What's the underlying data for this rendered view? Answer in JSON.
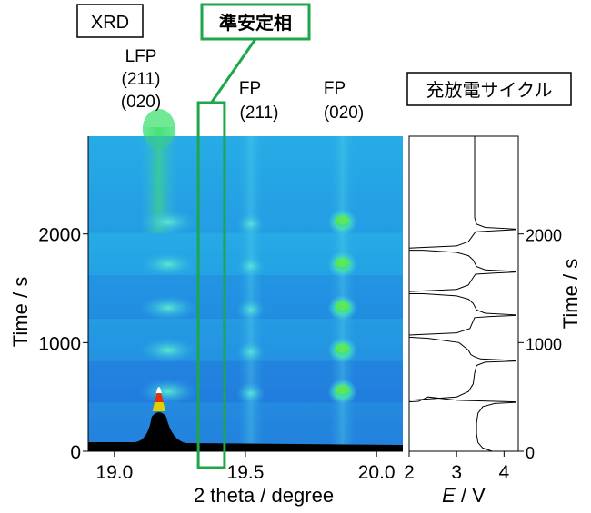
{
  "chart_data": [
    {
      "type": "heatmap",
      "panel_label": "XRD",
      "xlabel": "2 theta / degree",
      "ylabel": "Time / s",
      "xlim": [
        18.9,
        20.1
      ],
      "ylim": [
        0,
        2900
      ],
      "xticks": [
        19.0,
        19.5,
        20.0
      ],
      "xtick_labels": [
        "19.0",
        "19.5",
        "20.0"
      ],
      "yticks": [
        0,
        1000,
        2000
      ],
      "ytick_labels": [
        "0",
        "1000",
        "2000"
      ],
      "grid": false,
      "peaks": [
        {
          "label": "LFP",
          "label2": "(211)",
          "label3": "(020)",
          "two_theta": 19.17
        },
        {
          "label": "FP",
          "label2": "(211)",
          "two_theta": 19.52
        },
        {
          "label": "FP",
          "label2": "(020)",
          "two_theta": 19.87
        }
      ],
      "highlight_box": {
        "label": "準安定相",
        "x_range": [
          19.32,
          19.42
        ]
      },
      "charge_segments": [
        {
          "t_start": 0,
          "t_end": 450
        },
        {
          "t_start": 450,
          "t_end": 830
        },
        {
          "t_start": 830,
          "t_end": 1220
        },
        {
          "t_start": 1220,
          "t_end": 1620
        },
        {
          "t_start": 1620,
          "t_end": 2010
        },
        {
          "t_start": 2010,
          "t_end": 2900
        }
      ]
    },
    {
      "type": "line",
      "panel_label": "充放電サイクル",
      "xlabel_italic": "E",
      "xlabel_rest": " / V",
      "ylabel": "Time / s",
      "xlim": [
        2,
        4.3
      ],
      "ylim": [
        0,
        2900
      ],
      "xticks": [
        2,
        3,
        4
      ],
      "xtick_labels": [
        "2",
        "3",
        "4"
      ],
      "yticks": [
        0,
        1000,
        2000
      ],
      "ytick_labels": [
        "0",
        "1000",
        "2000"
      ],
      "series": [
        {
          "x": [
            3.7,
            3.48,
            3.42,
            3.4,
            3.4,
            3.43,
            3.5,
            3.65,
            4.25,
            4.25,
            2.2,
            2.0,
            2.0
          ],
          "y": [
            0,
            40,
            100,
            200,
            300,
            360,
            400,
            430,
            450,
            450,
            450,
            450,
            450
          ]
        }
      ],
      "curve_points": [
        [
          3.75,
          0
        ],
        [
          3.55,
          30
        ],
        [
          3.45,
          80
        ],
        [
          3.42,
          160
        ],
        [
          3.42,
          260
        ],
        [
          3.45,
          350
        ],
        [
          3.55,
          410
        ],
        [
          3.8,
          440
        ],
        [
          4.25,
          450
        ],
        [
          4.25,
          455
        ],
        [
          3.0,
          470
        ],
        [
          2.6,
          490
        ],
        [
          2.4,
          500
        ],
        [
          2.2,
          460
        ],
        [
          2.0,
          455
        ],
        [
          2.0,
          470
        ],
        [
          3.0,
          500
        ],
        [
          3.25,
          550
        ],
        [
          3.35,
          620
        ],
        [
          3.38,
          720
        ],
        [
          3.42,
          790
        ],
        [
          3.6,
          820
        ],
        [
          4.25,
          830
        ],
        [
          4.25,
          835
        ],
        [
          3.5,
          850
        ],
        [
          3.38,
          870
        ],
        [
          3.3,
          890
        ],
        [
          3.25,
          930
        ],
        [
          3.05,
          1000
        ],
        [
          2.4,
          1040
        ],
        [
          2.0,
          1050
        ],
        [
          2.0,
          1070
        ],
        [
          3.0,
          1090
        ],
        [
          3.28,
          1130
        ],
        [
          3.35,
          1200
        ],
        [
          3.38,
          1230
        ],
        [
          3.7,
          1240
        ],
        [
          4.25,
          1250
        ],
        [
          4.25,
          1255
        ],
        [
          3.6,
          1270
        ],
        [
          3.42,
          1300
        ],
        [
          3.35,
          1360
        ],
        [
          3.25,
          1400
        ],
        [
          3.0,
          1430
        ],
        [
          2.3,
          1450
        ],
        [
          2.0,
          1450
        ],
        [
          2.0,
          1470
        ],
        [
          3.0,
          1490
        ],
        [
          3.25,
          1530
        ],
        [
          3.35,
          1600
        ],
        [
          3.4,
          1630
        ],
        [
          3.8,
          1640
        ],
        [
          4.25,
          1650
        ],
        [
          4.25,
          1655
        ],
        [
          3.6,
          1670
        ],
        [
          3.42,
          1700
        ],
        [
          3.35,
          1760
        ],
        [
          3.25,
          1800
        ],
        [
          3.0,
          1830
        ],
        [
          2.3,
          1850
        ],
        [
          2.0,
          1850
        ],
        [
          2.0,
          1870
        ],
        [
          3.0,
          1890
        ],
        [
          3.25,
          1930
        ],
        [
          3.35,
          1990
        ],
        [
          3.4,
          2020
        ],
        [
          3.8,
          2030
        ],
        [
          4.25,
          2040
        ],
        [
          4.25,
          2045
        ],
        [
          3.6,
          2060
        ],
        [
          3.42,
          2090
        ],
        [
          3.38,
          2150
        ],
        [
          3.38,
          2900
        ]
      ]
    }
  ]
}
